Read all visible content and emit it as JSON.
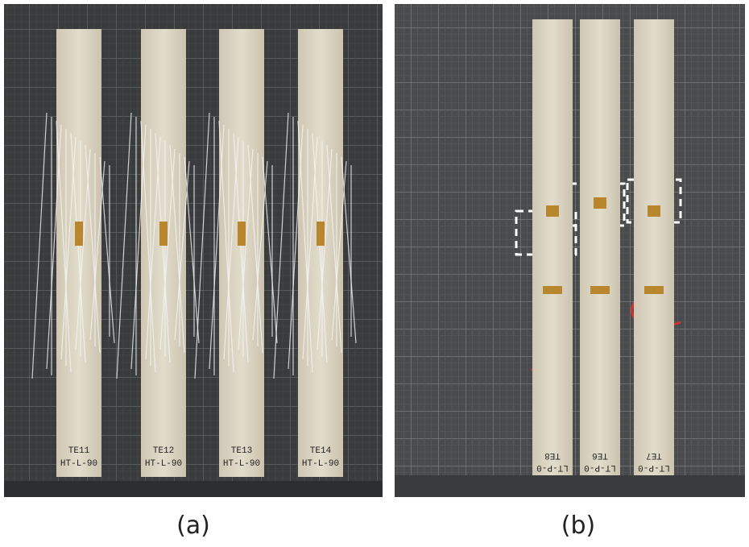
{
  "captions": [
    "(a)",
    "(b)"
  ],
  "panel_a": {
    "specimens": [
      {
        "id": "TE11",
        "code": "HT-L-90"
      },
      {
        "id": "TE12",
        "code": "HT-L-90"
      },
      {
        "id": "TE13",
        "code": "HT-L-90"
      },
      {
        "id": "TE14",
        "code": "HT-L-90"
      }
    ]
  },
  "panel_b": {
    "specimens": [
      {
        "id": "TE8",
        "code": "LT-P-0"
      },
      {
        "id": "TE6",
        "code": "LT-P-0"
      },
      {
        "id": "TE7",
        "code": "LT-P-0"
      }
    ]
  }
}
